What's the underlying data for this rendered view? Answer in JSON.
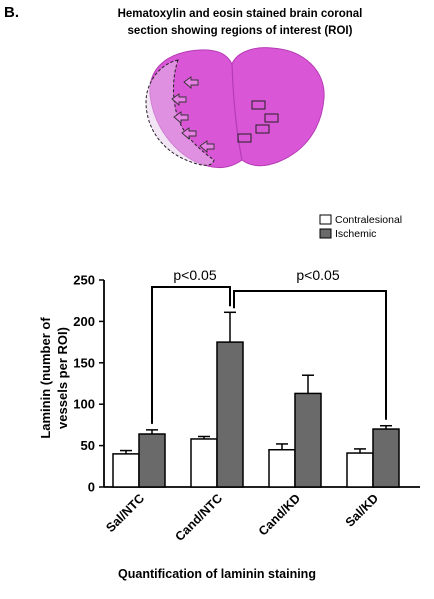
{
  "panel": {
    "label": "B.",
    "title_line1": "Hematoxylin and eosin stained brain coronal",
    "title_line2": "section showing regions of interest (ROI)",
    "caption": "Quantification of laminin staining"
  },
  "colors": {
    "tissue": "#d957d6",
    "tissue_dark": "#b53bb5",
    "contralesional": "#ffffff",
    "ischemic": "#6a6a6a"
  },
  "chart_data": {
    "type": "bar",
    "categories": [
      "Sal/NTC",
      "Cand/NTC",
      "Cand/KD",
      "Sal/KD"
    ],
    "series": [
      {
        "name": "Contralesional",
        "values": [
          40,
          58,
          45,
          41
        ],
        "errors": [
          4,
          3,
          7,
          5
        ]
      },
      {
        "name": "Ischemic",
        "values": [
          64,
          175,
          113,
          70
        ],
        "errors": [
          5,
          36,
          22,
          4
        ]
      }
    ],
    "ylabel": "Laminin (number of vessels per ROI)",
    "ylabel_lines": [
      "Laminin (number of",
      "vessels per ROI)"
    ],
    "xlabel": "",
    "ylim": [
      0,
      250
    ],
    "yticks": [
      "0",
      "50",
      "100",
      "150",
      "200",
      "250"
    ],
    "legend_position": "top-right",
    "grid": false,
    "annotations": [
      {
        "text": "p<0.05",
        "between": [
          "Sal/NTC",
          "Cand/NTC"
        ]
      },
      {
        "text": "p<0.05",
        "between": [
          "Cand/NTC",
          "Sal/KD"
        ]
      }
    ]
  }
}
